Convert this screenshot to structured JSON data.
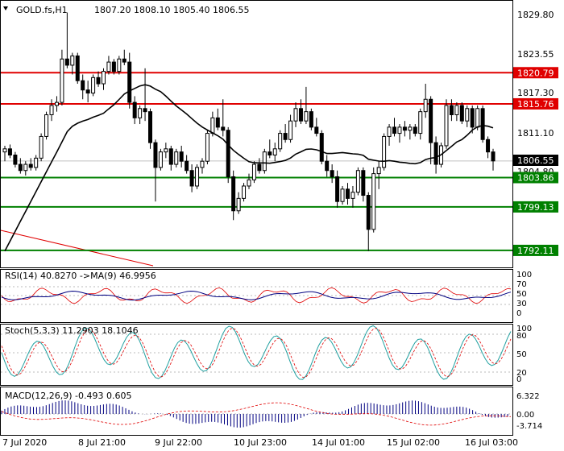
{
  "header": {
    "symbol": "GOLD.fs,H1",
    "ohlc": "1807.20 1808.10 1805.40 1806.55"
  },
  "price_axis": {
    "ticks": [
      "1829.80",
      "1823.55",
      "1817.30",
      "1811.10",
      "1804.80"
    ],
    "current_price": "1806.55"
  },
  "levels": [
    {
      "label": "1820.79",
      "value": 1820.79,
      "color": "#e00000"
    },
    {
      "label": "1815.76",
      "value": 1815.76,
      "color": "#e00000"
    },
    {
      "label": "1803.86",
      "value": 1803.86,
      "color": "#008000"
    },
    {
      "label": "1799.13",
      "value": 1799.13,
      "color": "#008000"
    },
    {
      "label": "1792.11",
      "value": 1792.11,
      "color": "#008000"
    }
  ],
  "indicators": {
    "rsi": {
      "label": "RSI(14) 40.8270  ->MA(9) 46.9956",
      "ticks": [
        "100",
        "70",
        "50",
        "30",
        "0"
      ]
    },
    "stoch": {
      "label": "Stoch(5,3,3) 11.2903 18.1046",
      "ticks": [
        "100",
        "80",
        "50",
        "20",
        "0"
      ]
    },
    "macd": {
      "label": "MACD(12,26,9) -0.493 0.605",
      "ticks": [
        "6.322",
        "0.00",
        "-3.714"
      ]
    }
  },
  "time_axis": [
    "7 Jul 2020",
    "8 Jul 21:00",
    "9 Jul 22:00",
    "10 Jul 23:00",
    "14 Jul 01:00",
    "15 Jul 02:00",
    "16 Jul 03:00"
  ],
  "colors": {
    "bull": "#000000",
    "bear": "#000000",
    "ma": "#000000",
    "resistance": "#e00000",
    "support": "#008000",
    "trend": "#e00000"
  },
  "chart_data": {
    "type": "candlestick",
    "title": "GOLD.fs,H1",
    "ylim": [
      1789.5,
      1832.0
    ],
    "candles": [
      [
        1808.0,
        1809.0,
        1806.5,
        1808.5
      ],
      [
        1808.5,
        1809.2,
        1807.0,
        1807.5
      ],
      [
        1807.5,
        1808.0,
        1805.5,
        1806.0
      ],
      [
        1806.0,
        1807.0,
        1804.5,
        1805.0
      ],
      [
        1805.0,
        1806.5,
        1804.2,
        1806.0
      ],
      [
        1806.0,
        1807.0,
        1805.0,
        1805.5
      ],
      [
        1805.5,
        1807.5,
        1805.0,
        1807.0
      ],
      [
        1807.0,
        1811.0,
        1806.5,
        1810.5
      ],
      [
        1810.5,
        1814.5,
        1810.0,
        1814.0
      ],
      [
        1814.0,
        1816.5,
        1813.0,
        1815.5
      ],
      [
        1815.5,
        1817.0,
        1814.5,
        1816.0
      ],
      [
        1816.0,
        1824.5,
        1815.5,
        1823.0
      ],
      [
        1823.0,
        1830.5,
        1821.5,
        1822.0
      ],
      [
        1822.0,
        1824.0,
        1820.5,
        1823.5
      ],
      [
        1823.5,
        1824.0,
        1819.0,
        1819.5
      ],
      [
        1819.5,
        1820.5,
        1816.5,
        1818.0
      ],
      [
        1818.0,
        1819.5,
        1816.0,
        1817.5
      ],
      [
        1817.5,
        1820.5,
        1817.0,
        1820.0
      ],
      [
        1820.0,
        1821.0,
        1818.5,
        1819.0
      ],
      [
        1819.0,
        1821.5,
        1818.0,
        1821.0
      ],
      [
        1821.0,
        1823.5,
        1820.5,
        1822.5
      ],
      [
        1822.5,
        1823.0,
        1820.5,
        1821.0
      ],
      [
        1821.0,
        1823.5,
        1820.5,
        1823.0
      ],
      [
        1823.0,
        1824.5,
        1822.0,
        1822.5
      ],
      [
        1822.5,
        1824.0,
        1815.0,
        1816.0
      ],
      [
        1816.0,
        1817.0,
        1812.5,
        1813.5
      ],
      [
        1813.5,
        1815.5,
        1812.5,
        1815.0
      ],
      [
        1815.0,
        1821.5,
        1813.0,
        1814.5
      ],
      [
        1814.5,
        1815.0,
        1808.5,
        1809.5
      ],
      [
        1809.5,
        1810.0,
        1800.0,
        1805.5
      ],
      [
        1805.5,
        1808.5,
        1805.0,
        1808.0
      ],
      [
        1808.0,
        1809.5,
        1807.0,
        1808.5
      ],
      [
        1808.5,
        1809.0,
        1805.0,
        1806.0
      ],
      [
        1806.0,
        1808.5,
        1805.5,
        1808.0
      ],
      [
        1808.0,
        1809.0,
        1805.5,
        1806.5
      ],
      [
        1806.5,
        1807.5,
        1804.5,
        1805.0
      ],
      [
        1805.0,
        1806.0,
        1801.5,
        1802.5
      ],
      [
        1802.5,
        1806.0,
        1802.0,
        1805.5
      ],
      [
        1805.5,
        1807.0,
        1804.5,
        1806.5
      ],
      [
        1806.5,
        1811.5,
        1806.0,
        1811.0
      ],
      [
        1811.0,
        1814.5,
        1810.5,
        1813.5
      ],
      [
        1813.5,
        1815.0,
        1811.5,
        1812.0
      ],
      [
        1812.0,
        1816.5,
        1810.5,
        1811.5
      ],
      [
        1811.5,
        1812.0,
        1803.0,
        1804.0
      ],
      [
        1804.0,
        1805.0,
        1797.0,
        1798.5
      ],
      [
        1798.5,
        1801.5,
        1798.0,
        1800.5
      ],
      [
        1800.5,
        1803.0,
        1800.0,
        1802.5
      ],
      [
        1802.5,
        1804.5,
        1802.0,
        1803.5
      ],
      [
        1803.5,
        1806.5,
        1803.0,
        1806.0
      ],
      [
        1806.0,
        1807.0,
        1804.5,
        1805.0
      ],
      [
        1805.0,
        1808.5,
        1804.5,
        1808.0
      ],
      [
        1808.0,
        1810.0,
        1807.0,
        1807.5
      ],
      [
        1807.5,
        1809.5,
        1806.5,
        1808.5
      ],
      [
        1808.5,
        1811.5,
        1808.0,
        1811.0
      ],
      [
        1811.0,
        1812.5,
        1809.5,
        1810.0
      ],
      [
        1810.0,
        1814.0,
        1809.5,
        1813.0
      ],
      [
        1813.0,
        1816.0,
        1812.0,
        1815.0
      ],
      [
        1815.0,
        1816.5,
        1812.5,
        1813.0
      ],
      [
        1813.0,
        1818.5,
        1812.5,
        1814.5
      ],
      [
        1814.5,
        1815.0,
        1811.5,
        1812.0
      ],
      [
        1812.0,
        1813.5,
        1810.5,
        1811.0
      ],
      [
        1811.0,
        1811.5,
        1806.0,
        1806.5
      ],
      [
        1806.5,
        1807.5,
        1804.0,
        1805.0
      ],
      [
        1805.0,
        1806.0,
        1803.0,
        1804.0
      ],
      [
        1804.0,
        1805.0,
        1799.0,
        1800.0
      ],
      [
        1800.0,
        1802.5,
        1799.5,
        1802.0
      ],
      [
        1802.0,
        1803.0,
        1799.5,
        1800.5
      ],
      [
        1800.5,
        1802.5,
        1799.0,
        1801.5
      ],
      [
        1801.5,
        1805.5,
        1801.0,
        1805.0
      ],
      [
        1805.0,
        1805.5,
        1800.0,
        1801.0
      ],
      [
        1801.0,
        1801.5,
        1792.0,
        1795.5
      ],
      [
        1795.5,
        1805.5,
        1795.0,
        1804.5
      ],
      [
        1804.5,
        1806.5,
        1802.0,
        1805.5
      ],
      [
        1805.5,
        1811.0,
        1805.0,
        1810.5
      ],
      [
        1810.5,
        1812.5,
        1809.0,
        1812.0
      ],
      [
        1812.0,
        1813.5,
        1810.5,
        1811.0
      ],
      [
        1811.0,
        1812.5,
        1809.5,
        1812.0
      ],
      [
        1812.0,
        1813.0,
        1810.5,
        1811.5
      ],
      [
        1811.5,
        1812.5,
        1810.0,
        1812.0
      ],
      [
        1812.0,
        1812.5,
        1810.5,
        1811.0
      ],
      [
        1811.0,
        1815.0,
        1810.0,
        1814.5
      ],
      [
        1814.5,
        1819.0,
        1813.5,
        1816.5
      ],
      [
        1816.5,
        1817.0,
        1806.0,
        1809.5
      ],
      [
        1809.5,
        1810.5,
        1804.5,
        1806.0
      ],
      [
        1806.0,
        1809.5,
        1805.5,
        1809.0
      ],
      [
        1809.0,
        1816.5,
        1808.5,
        1815.5
      ],
      [
        1815.5,
        1816.5,
        1813.0,
        1814.0
      ],
      [
        1814.0,
        1816.0,
        1813.0,
        1815.5
      ],
      [
        1815.5,
        1816.0,
        1812.5,
        1813.0
      ],
      [
        1813.0,
        1815.5,
        1812.0,
        1815.0
      ],
      [
        1815.0,
        1815.5,
        1811.0,
        1812.0
      ],
      [
        1812.0,
        1815.5,
        1811.5,
        1815.0
      ],
      [
        1815.0,
        1815.5,
        1809.5,
        1810.0
      ],
      [
        1810.0,
        1810.5,
        1807.0,
        1808.0
      ],
      [
        1808.0,
        1808.5,
        1805.0,
        1806.55
      ]
    ],
    "ma_series_name": "",
    "levels": [
      1820.79,
      1815.76,
      1803.86,
      1799.13,
      1792.11
    ]
  }
}
